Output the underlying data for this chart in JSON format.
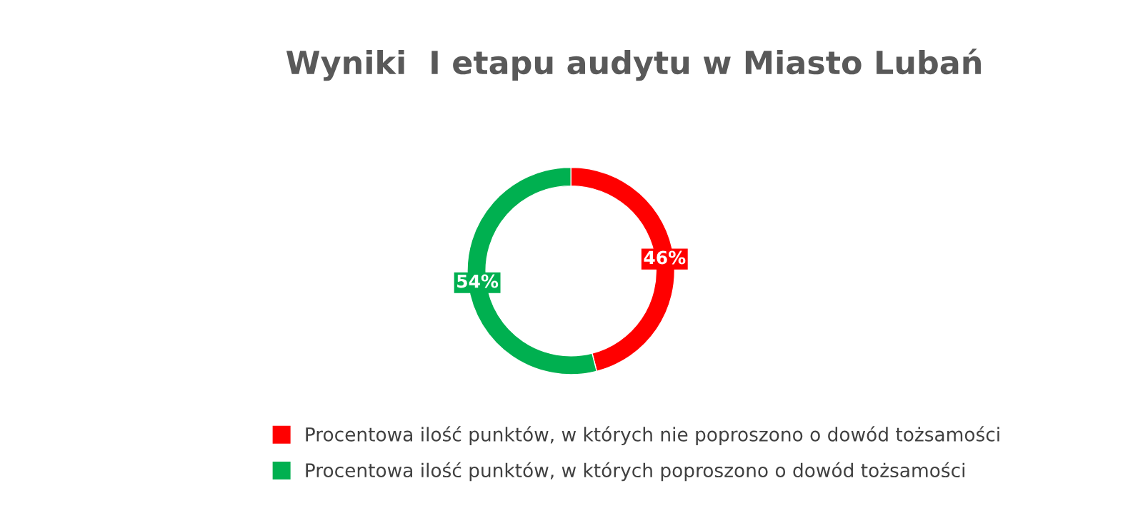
{
  "chart_data": {
    "type": "donut",
    "title": "Wyniki  I etapu audytu w Miasto Lubań",
    "categories": [
      "Procentowa ilość punktów, w których nie poproszono o dowód tożsamości",
      "Procentowa ilość punktów, w których poproszono o dowód tożsamości"
    ],
    "values": [
      46,
      54
    ],
    "colors": [
      "#ff0000",
      "#00b050"
    ],
    "value_labels": [
      "46%",
      "54%"
    ],
    "legend": "bottom"
  }
}
